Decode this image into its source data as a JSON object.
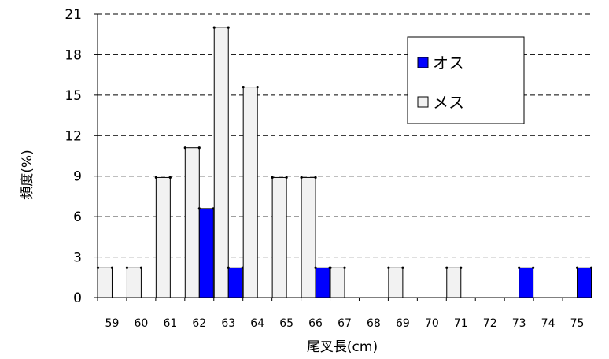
{
  "chart_data": {
    "type": "bar",
    "title": "",
    "xlabel": "尾叉長(cm)",
    "ylabel": "頻度(%)",
    "ylim": [
      0,
      21
    ],
    "yticks": [
      "0",
      "3",
      "6",
      "9",
      "12",
      "15",
      "18",
      "21"
    ],
    "categories": [
      "59",
      "60",
      "61",
      "62",
      "63",
      "64",
      "65",
      "66",
      "67",
      "68",
      "69",
      "70",
      "71",
      "72",
      "73",
      "74",
      "75"
    ],
    "series": [
      {
        "name": "オス",
        "color": "#0000ff",
        "values": [
          0,
          0,
          0,
          6.6,
          2.2,
          0,
          0,
          2.2,
          0,
          0,
          0,
          0,
          0,
          0,
          2.2,
          0,
          2.2
        ]
      },
      {
        "name": "メス",
        "color": "#f2f2f2",
        "values": [
          2.2,
          2.2,
          8.9,
          11.1,
          20.0,
          15.6,
          8.9,
          8.9,
          2.2,
          0,
          2.2,
          0,
          2.2,
          0,
          0,
          0,
          0
        ]
      }
    ],
    "grid": true,
    "legend_position": "top-right"
  }
}
